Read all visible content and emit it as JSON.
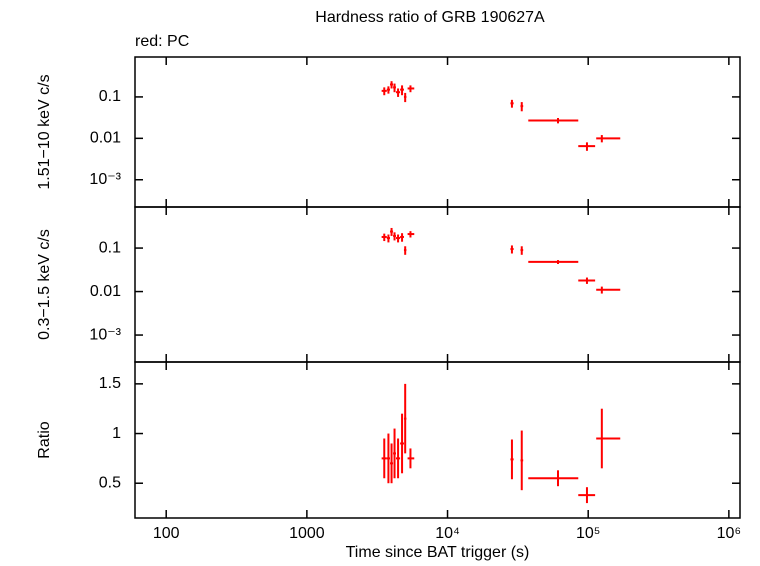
{
  "chart_data": [
    {
      "type": "scatter",
      "title": "Hardness ratio of GRB 190627A",
      "subtitle": "red: PC",
      "ylabel": "1.51−10 keV c/s",
      "log_x": true,
      "log_y": true,
      "xlim": [
        60,
        1200000
      ],
      "ylim": [
        0.00022,
        0.92
      ],
      "xticks": [
        100,
        1000,
        {
          "value": 10000,
          "label": "10⁴"
        },
        {
          "value": 100000,
          "label": "10⁵"
        },
        {
          "value": 1000000,
          "label": "10⁶"
        }
      ],
      "yticks": [
        0.1,
        0.01,
        {
          "value": 0.001,
          "label": "10⁻³"
        }
      ],
      "series": [
        {
          "color": "#ff0000",
          "x": [
            3550,
            3800,
            4000,
            4200,
            4450,
            4750,
            5000,
            5450,
            28700,
            33700,
            61000,
            98000,
            125000
          ],
          "x_lo": [
            3400,
            3700,
            3900,
            4100,
            4300,
            4600,
            4900,
            5200,
            28000,
            33000,
            37500,
            85000,
            114000
          ],
          "x_hi": [
            3700,
            3900,
            4100,
            4300,
            4600,
            4900,
            5100,
            5800,
            29500,
            34500,
            85000,
            112000,
            169000
          ],
          "values": [
            0.14,
            0.15,
            0.2,
            0.17,
            0.13,
            0.15,
            0.1,
            0.16,
            0.07,
            0.06,
            0.027,
            0.0065,
            0.01
          ],
          "errors": [
            0.03,
            0.03,
            0.04,
            0.04,
            0.03,
            0.04,
            0.025,
            0.03,
            0.015,
            0.015,
            0.004,
            0.0015,
            0.002
          ]
        }
      ]
    },
    {
      "type": "scatter",
      "ylabel": "0.3−1.5 keV c/s",
      "log_x": true,
      "log_y": true,
      "xlim": [
        60,
        1200000
      ],
      "ylim": [
        0.00024,
        0.88
      ],
      "xticks": [
        100,
        1000,
        {
          "value": 10000,
          "label": "10⁴"
        },
        {
          "value": 100000,
          "label": "10⁵"
        },
        {
          "value": 1000000,
          "label": "10⁶"
        }
      ],
      "yticks": [
        0.1,
        0.01,
        {
          "value": 0.001,
          "label": "10⁻³"
        }
      ],
      "series": [
        {
          "color": "#ff0000",
          "x": [
            3550,
            3800,
            4000,
            4200,
            4450,
            4750,
            5000,
            5450,
            28700,
            33700,
            61000,
            98000,
            125000
          ],
          "x_lo": [
            3400,
            3700,
            3900,
            4100,
            4300,
            4600,
            4900,
            5200,
            28000,
            33000,
            37500,
            85000,
            114000
          ],
          "x_hi": [
            3700,
            3900,
            4100,
            4300,
            4600,
            4900,
            5100,
            5800,
            29500,
            34500,
            85000,
            112000,
            169000
          ],
          "values": [
            0.18,
            0.17,
            0.24,
            0.19,
            0.17,
            0.18,
            0.09,
            0.21,
            0.095,
            0.09,
            0.048,
            0.018,
            0.011
          ],
          "errors": [
            0.035,
            0.035,
            0.05,
            0.04,
            0.035,
            0.04,
            0.02,
            0.035,
            0.02,
            0.02,
            0.005,
            0.003,
            0.002
          ]
        }
      ]
    },
    {
      "type": "scatter",
      "ylabel": "Ratio",
      "xlabel": "Time since BAT trigger (s)",
      "log_x": true,
      "log_y": false,
      "xlim": [
        60,
        1200000
      ],
      "ylim": [
        0.15,
        1.72
      ],
      "xticks": [
        100,
        1000,
        {
          "value": 10000,
          "label": "10⁴"
        },
        {
          "value": 100000,
          "label": "10⁵"
        },
        {
          "value": 1000000,
          "label": "10⁶"
        }
      ],
      "yticks": [
        0.5,
        1,
        1.5
      ],
      "series": [
        {
          "color": "#ff0000",
          "x": [
            3550,
            3800,
            4000,
            4200,
            4450,
            4750,
            5000,
            5450,
            28700,
            33700,
            61000,
            98000,
            125000
          ],
          "x_lo": [
            3400,
            3700,
            3900,
            4100,
            4300,
            4600,
            4900,
            5200,
            28000,
            33000,
            37500,
            85000,
            114000
          ],
          "x_hi": [
            3700,
            3900,
            4100,
            4300,
            4600,
            4900,
            5100,
            5800,
            29500,
            34500,
            85000,
            112000,
            169000
          ],
          "values": [
            0.75,
            0.75,
            0.7,
            0.8,
            0.75,
            0.9,
            1.15,
            0.75,
            0.74,
            0.73,
            0.55,
            0.38,
            0.95
          ],
          "errors": [
            0.2,
            0.25,
            0.2,
            0.25,
            0.2,
            0.3,
            0.35,
            0.1,
            0.2,
            0.3,
            0.08,
            0.08,
            0.3
          ]
        }
      ]
    }
  ]
}
